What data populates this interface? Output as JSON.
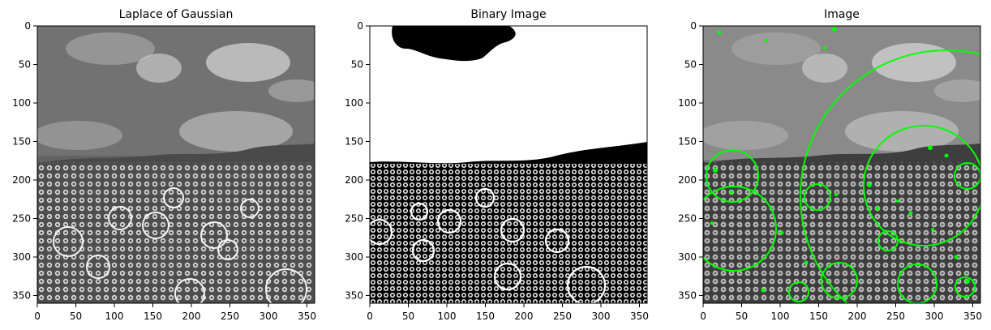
{
  "figure": {
    "panels": [
      {
        "title": "Laplace of Gaussian",
        "xticks": [
          "0",
          "50",
          "100",
          "150",
          "200",
          "250",
          "300",
          "350"
        ],
        "yticks": [
          "0",
          "50",
          "100",
          "150",
          "200",
          "250",
          "300",
          "350"
        ]
      },
      {
        "title": "Binary Image",
        "xticks": [
          "0",
          "50",
          "100",
          "150",
          "200",
          "250",
          "300",
          "350"
        ],
        "yticks": [
          "0",
          "50",
          "100",
          "150",
          "200",
          "250",
          "300",
          "350"
        ]
      },
      {
        "title": "Image",
        "xticks": [
          "0",
          "50",
          "100",
          "150",
          "200",
          "250",
          "300",
          "350"
        ],
        "yticks": [
          "0",
          "50",
          "100",
          "150",
          "200",
          "250",
          "300",
          "350"
        ]
      }
    ],
    "colors": {
      "detected_blob": "#00ff00"
    }
  }
}
